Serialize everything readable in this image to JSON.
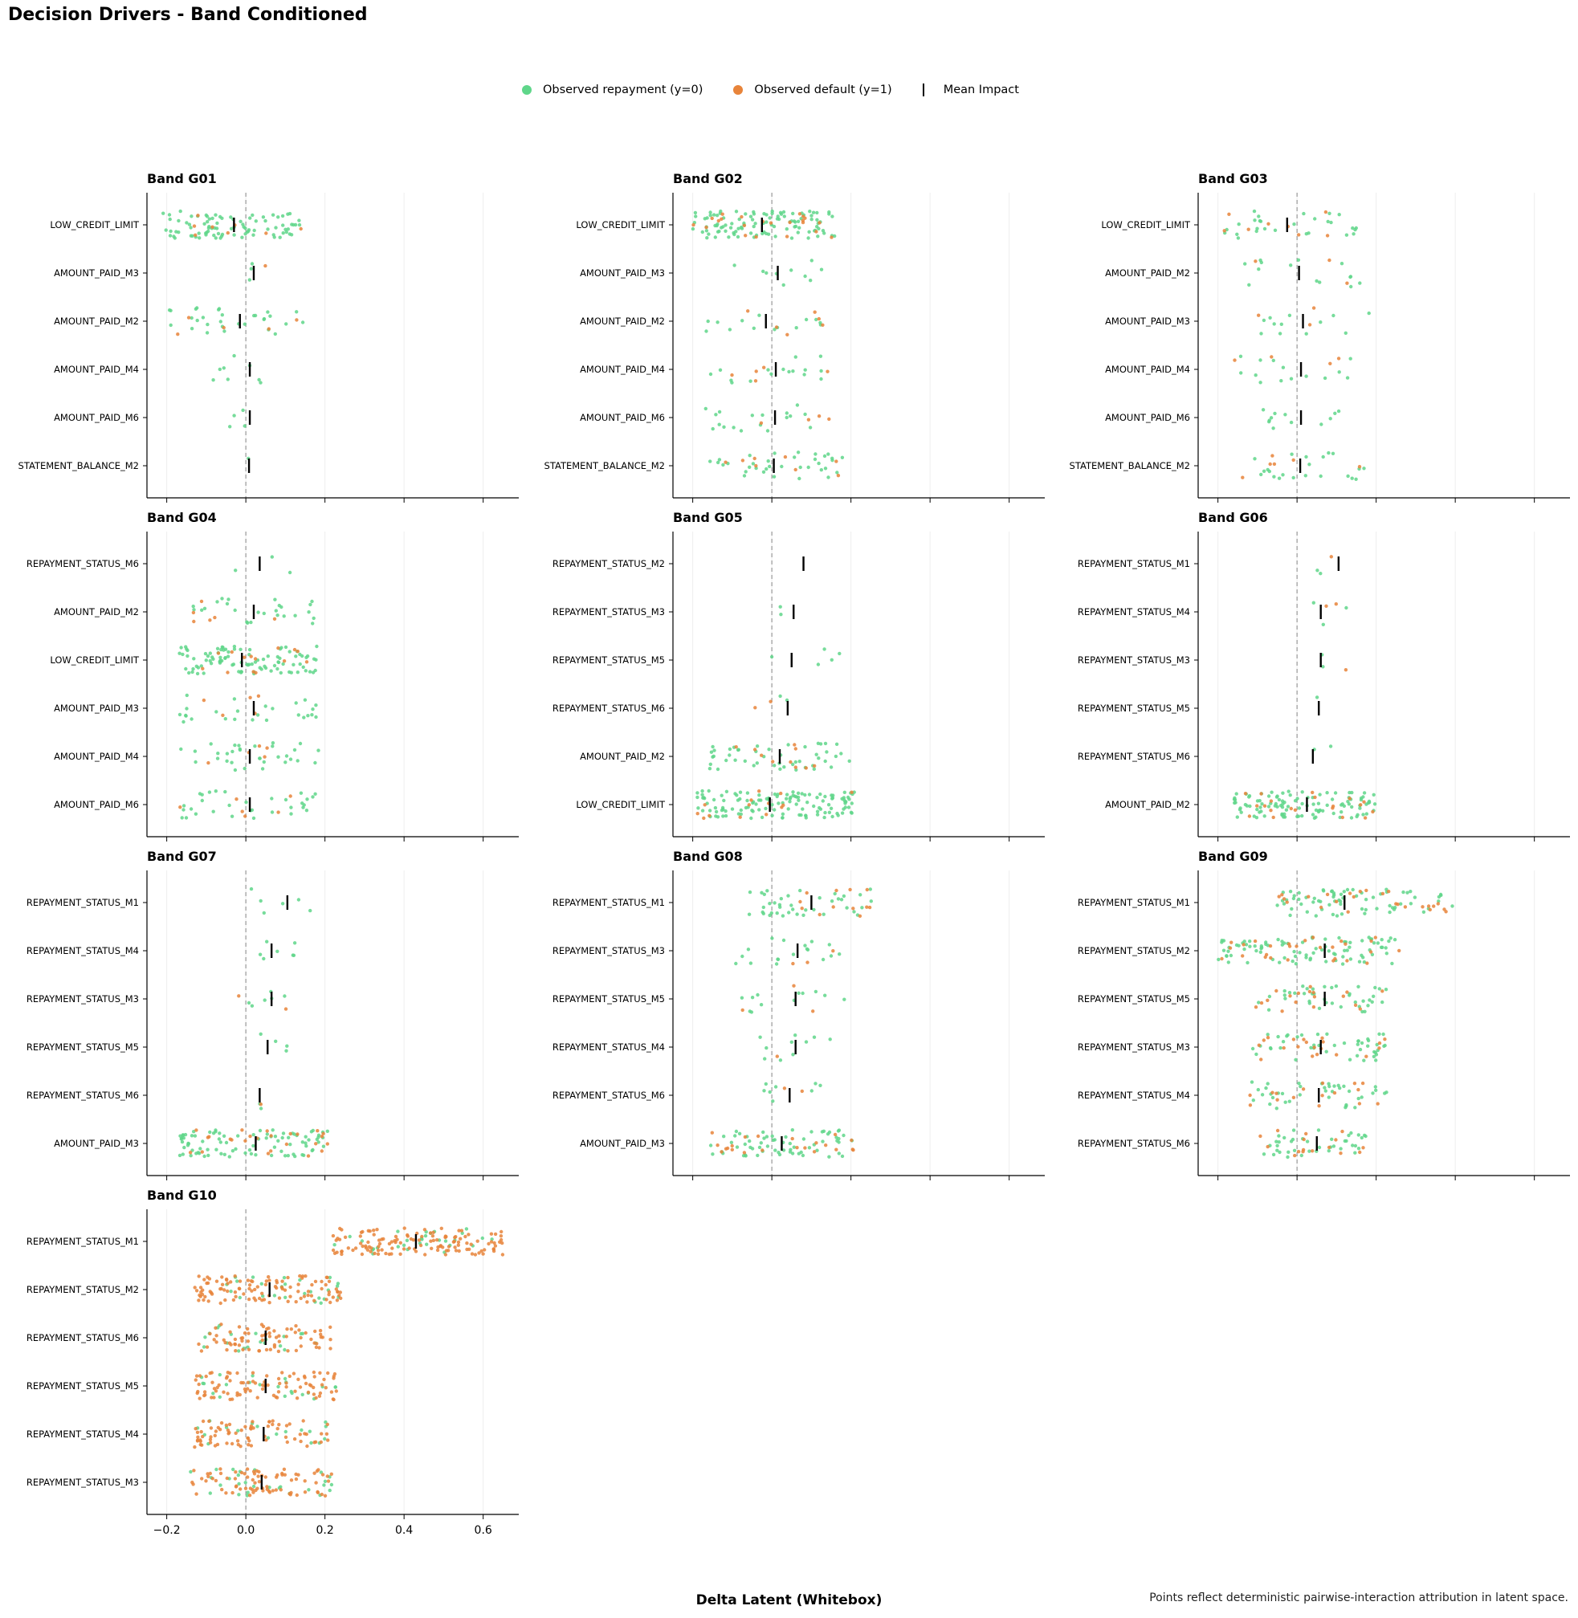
{
  "title": "Decision Drivers - Band Conditioned",
  "footnote": "Points reflect deterministic pairwise-interaction attribution in latent space.",
  "colors": {
    "repayment": "#5fd68a",
    "default": "#e8843a",
    "mean": "#000000",
    "zero_line": "#999999"
  },
  "chart_data": {
    "type": "scatter",
    "subtype": "strip",
    "title": "Decision Drivers - Band Conditioned",
    "xlabel": "Delta Latent (Whitebox)",
    "xlim": [
      -0.25,
      0.69
    ],
    "xticks": [
      -0.2,
      0.0,
      0.2,
      0.4,
      0.6
    ],
    "xtick_labels": [
      "−0.2",
      "0.0",
      "0.2",
      "0.4",
      "0.6"
    ],
    "grid": "vertical",
    "legend": {
      "placement": "top-center",
      "entries": [
        {
          "label": "Observed repayment (y=0)",
          "marker": "dot",
          "color": "#5fd68a"
        },
        {
          "label": "Observed default (y=1)",
          "marker": "dot",
          "color": "#e8843a"
        },
        {
          "label": "Mean Impact",
          "marker": "line",
          "color": "#000000"
        }
      ]
    },
    "panels": [
      {
        "title": "Band G01",
        "features": [
          {
            "name": "LOW_CREDIT_LIMIT",
            "mean": -0.03,
            "min": -0.21,
            "max": 0.14,
            "n_repay": 90,
            "n_default": 8
          },
          {
            "name": "AMOUNT_PAID_M3",
            "mean": 0.02,
            "min": 0.0,
            "max": 0.07,
            "n_repay": 3,
            "n_default": 1
          },
          {
            "name": "AMOUNT_PAID_M2",
            "mean": -0.015,
            "min": -0.2,
            "max": 0.16,
            "n_repay": 30,
            "n_default": 5
          },
          {
            "name": "AMOUNT_PAID_M4",
            "mean": 0.01,
            "min": -0.09,
            "max": 0.14,
            "n_repay": 8,
            "n_default": 0
          },
          {
            "name": "AMOUNT_PAID_M6",
            "mean": 0.01,
            "min": -0.06,
            "max": 0.08,
            "n_repay": 4,
            "n_default": 0
          },
          {
            "name": "STATEMENT_BALANCE_M2",
            "mean": 0.008,
            "min": 0.0,
            "max": 0.01,
            "n_repay": 1,
            "n_default": 0
          }
        ]
      },
      {
        "title": "Band G02",
        "features": [
          {
            "name": "LOW_CREDIT_LIMIT",
            "mean": -0.025,
            "min": -0.2,
            "max": 0.16,
            "n_repay": 110,
            "n_default": 22
          },
          {
            "name": "AMOUNT_PAID_M3",
            "mean": 0.015,
            "min": -0.11,
            "max": 0.14,
            "n_repay": 10,
            "n_default": 0
          },
          {
            "name": "AMOUNT_PAID_M2",
            "mean": -0.015,
            "min": -0.2,
            "max": 0.13,
            "n_repay": 14,
            "n_default": 6
          },
          {
            "name": "AMOUNT_PAID_M4",
            "mean": 0.01,
            "min": -0.17,
            "max": 0.15,
            "n_repay": 16,
            "n_default": 5
          },
          {
            "name": "AMOUNT_PAID_M6",
            "mean": 0.008,
            "min": -0.17,
            "max": 0.15,
            "n_repay": 18,
            "n_default": 4
          },
          {
            "name": "STATEMENT_BALANCE_M2",
            "mean": 0.005,
            "min": -0.17,
            "max": 0.18,
            "n_repay": 35,
            "n_default": 8
          }
        ]
      },
      {
        "title": "Band G03",
        "features": [
          {
            "name": "LOW_CREDIT_LIMIT",
            "mean": -0.025,
            "min": -0.19,
            "max": 0.15,
            "n_repay": 28,
            "n_default": 8
          },
          {
            "name": "AMOUNT_PAID_M2",
            "mean": 0.005,
            "min": -0.15,
            "max": 0.16,
            "n_repay": 14,
            "n_default": 3
          },
          {
            "name": "AMOUNT_PAID_M3",
            "mean": 0.015,
            "min": -0.13,
            "max": 0.19,
            "n_repay": 12,
            "n_default": 3
          },
          {
            "name": "AMOUNT_PAID_M4",
            "mean": 0.01,
            "min": -0.16,
            "max": 0.14,
            "n_repay": 14,
            "n_default": 4
          },
          {
            "name": "AMOUNT_PAID_M6",
            "mean": 0.01,
            "min": -0.1,
            "max": 0.14,
            "n_repay": 12,
            "n_default": 0
          },
          {
            "name": "STATEMENT_BALANCE_M2",
            "mean": 0.008,
            "min": -0.17,
            "max": 0.18,
            "n_repay": 22,
            "n_default": 6
          }
        ]
      },
      {
        "title": "Band G04",
        "features": [
          {
            "name": "REPAYMENT_STATUS_M6",
            "mean": 0.035,
            "min": -0.03,
            "max": 0.12,
            "n_repay": 3,
            "n_default": 0
          },
          {
            "name": "AMOUNT_PAID_M2",
            "mean": 0.02,
            "min": -0.14,
            "max": 0.2,
            "n_repay": 26,
            "n_default": 6
          },
          {
            "name": "LOW_CREDIT_LIMIT",
            "mean": -0.01,
            "min": -0.17,
            "max": 0.18,
            "n_repay": 100,
            "n_default": 14
          },
          {
            "name": "AMOUNT_PAID_M3",
            "mean": 0.02,
            "min": -0.17,
            "max": 0.19,
            "n_repay": 26,
            "n_default": 5
          },
          {
            "name": "AMOUNT_PAID_M4",
            "mean": 0.01,
            "min": -0.17,
            "max": 0.19,
            "n_repay": 32,
            "n_default": 5
          },
          {
            "name": "AMOUNT_PAID_M6",
            "mean": 0.01,
            "min": -0.17,
            "max": 0.19,
            "n_repay": 32,
            "n_default": 6
          }
        ]
      },
      {
        "title": "Band G05",
        "features": [
          {
            "name": "REPAYMENT_STATUS_M2",
            "mean": 0.08,
            "min": 0.08,
            "max": 0.08,
            "n_repay": 0,
            "n_default": 0
          },
          {
            "name": "REPAYMENT_STATUS_M3",
            "mean": 0.055,
            "min": 0.0,
            "max": 0.08,
            "n_repay": 2,
            "n_default": 0
          },
          {
            "name": "REPAYMENT_STATUS_M5",
            "mean": 0.05,
            "min": -0.09,
            "max": 0.19,
            "n_repay": 5,
            "n_default": 0
          },
          {
            "name": "REPAYMENT_STATUS_M6",
            "mean": 0.04,
            "min": -0.05,
            "max": 0.12,
            "n_repay": 2,
            "n_default": 2
          },
          {
            "name": "AMOUNT_PAID_M2",
            "mean": 0.02,
            "min": -0.16,
            "max": 0.2,
            "n_repay": 48,
            "n_default": 10
          },
          {
            "name": "LOW_CREDIT_LIMIT",
            "mean": -0.005,
            "min": -0.19,
            "max": 0.21,
            "n_repay": 130,
            "n_default": 14
          }
        ]
      },
      {
        "title": "Band G06",
        "features": [
          {
            "name": "REPAYMENT_STATUS_M1",
            "mean": 0.105,
            "min": 0.02,
            "max": 0.14,
            "n_repay": 2,
            "n_default": 1
          },
          {
            "name": "REPAYMENT_STATUS_M4",
            "mean": 0.06,
            "min": 0.0,
            "max": 0.18,
            "n_repay": 3,
            "n_default": 2
          },
          {
            "name": "REPAYMENT_STATUS_M3",
            "mean": 0.06,
            "min": 0.06,
            "max": 0.14,
            "n_repay": 2,
            "n_default": 1
          },
          {
            "name": "REPAYMENT_STATUS_M5",
            "mean": 0.055,
            "min": 0.05,
            "max": 0.06,
            "n_repay": 1,
            "n_default": 0
          },
          {
            "name": "REPAYMENT_STATUS_M6",
            "mean": 0.04,
            "min": 0.03,
            "max": 0.11,
            "n_repay": 2,
            "n_default": 0
          },
          {
            "name": "AMOUNT_PAID_M2",
            "mean": 0.025,
            "min": -0.16,
            "max": 0.2,
            "n_repay": 110,
            "n_default": 20
          }
        ]
      },
      {
        "title": "Band G07",
        "features": [
          {
            "name": "REPAYMENT_STATUS_M1",
            "mean": 0.105,
            "min": -0.01,
            "max": 0.21,
            "n_repay": 6,
            "n_default": 0
          },
          {
            "name": "REPAYMENT_STATUS_M4",
            "mean": 0.065,
            "min": 0.02,
            "max": 0.13,
            "n_repay": 7,
            "n_default": 0
          },
          {
            "name": "REPAYMENT_STATUS_M3",
            "mean": 0.065,
            "min": -0.05,
            "max": 0.11,
            "n_repay": 6,
            "n_default": 2
          },
          {
            "name": "REPAYMENT_STATUS_M5",
            "mean": 0.055,
            "min": -0.01,
            "max": 0.14,
            "n_repay": 4,
            "n_default": 0
          },
          {
            "name": "REPAYMENT_STATUS_M6",
            "mean": 0.035,
            "min": -0.02,
            "max": 0.04,
            "n_repay": 2,
            "n_default": 1
          },
          {
            "name": "AMOUNT_PAID_M3",
            "mean": 0.025,
            "min": -0.17,
            "max": 0.21,
            "n_repay": 90,
            "n_default": 25
          }
        ]
      },
      {
        "title": "Band G08",
        "features": [
          {
            "name": "REPAYMENT_STATUS_M1",
            "mean": 0.1,
            "min": -0.06,
            "max": 0.27,
            "n_repay": 40,
            "n_default": 12
          },
          {
            "name": "REPAYMENT_STATUS_M3",
            "mean": 0.065,
            "min": -0.1,
            "max": 0.22,
            "n_repay": 18,
            "n_default": 3
          },
          {
            "name": "REPAYMENT_STATUS_M5",
            "mean": 0.06,
            "min": -0.09,
            "max": 0.21,
            "n_repay": 12,
            "n_default": 3
          },
          {
            "name": "REPAYMENT_STATUS_M4",
            "mean": 0.06,
            "min": -0.05,
            "max": 0.15,
            "n_repay": 10,
            "n_default": 1
          },
          {
            "name": "REPAYMENT_STATUS_M6",
            "mean": 0.045,
            "min": -0.04,
            "max": 0.13,
            "n_repay": 8,
            "n_default": 2
          },
          {
            "name": "AMOUNT_PAID_M3",
            "mean": 0.025,
            "min": -0.16,
            "max": 0.21,
            "n_repay": 65,
            "n_default": 22
          }
        ]
      },
      {
        "title": "Band G09",
        "features": [
          {
            "name": "REPAYMENT_STATUS_M1",
            "mean": 0.12,
            "min": -0.05,
            "max": 0.4,
            "n_repay": 70,
            "n_default": 25
          },
          {
            "name": "REPAYMENT_STATUS_M2",
            "mean": 0.07,
            "min": -0.2,
            "max": 0.26,
            "n_repay": 90,
            "n_default": 28
          },
          {
            "name": "REPAYMENT_STATUS_M5",
            "mean": 0.07,
            "min": -0.11,
            "max": 0.23,
            "n_repay": 40,
            "n_default": 18
          },
          {
            "name": "REPAYMENT_STATUS_M3",
            "mean": 0.06,
            "min": -0.12,
            "max": 0.23,
            "n_repay": 45,
            "n_default": 20
          },
          {
            "name": "REPAYMENT_STATUS_M4",
            "mean": 0.055,
            "min": -0.12,
            "max": 0.23,
            "n_repay": 40,
            "n_default": 16
          },
          {
            "name": "REPAYMENT_STATUS_M6",
            "mean": 0.05,
            "min": -0.11,
            "max": 0.18,
            "n_repay": 40,
            "n_default": 16
          }
        ]
      },
      {
        "title": "Band G10",
        "features": [
          {
            "name": "REPAYMENT_STATUS_M1",
            "mean": 0.43,
            "min": 0.22,
            "max": 0.65,
            "n_repay": 30,
            "n_default": 130
          },
          {
            "name": "REPAYMENT_STATUS_M2",
            "mean": 0.06,
            "min": -0.13,
            "max": 0.24,
            "n_repay": 25,
            "n_default": 110
          },
          {
            "name": "REPAYMENT_STATUS_M6",
            "mean": 0.05,
            "min": -0.12,
            "max": 0.22,
            "n_repay": 20,
            "n_default": 75
          },
          {
            "name": "REPAYMENT_STATUS_M5",
            "mean": 0.05,
            "min": -0.13,
            "max": 0.23,
            "n_repay": 22,
            "n_default": 90
          },
          {
            "name": "REPAYMENT_STATUS_M4",
            "mean": 0.045,
            "min": -0.13,
            "max": 0.21,
            "n_repay": 18,
            "n_default": 75
          },
          {
            "name": "REPAYMENT_STATUS_M3",
            "mean": 0.04,
            "min": -0.14,
            "max": 0.22,
            "n_repay": 28,
            "n_default": 80
          }
        ]
      }
    ]
  }
}
